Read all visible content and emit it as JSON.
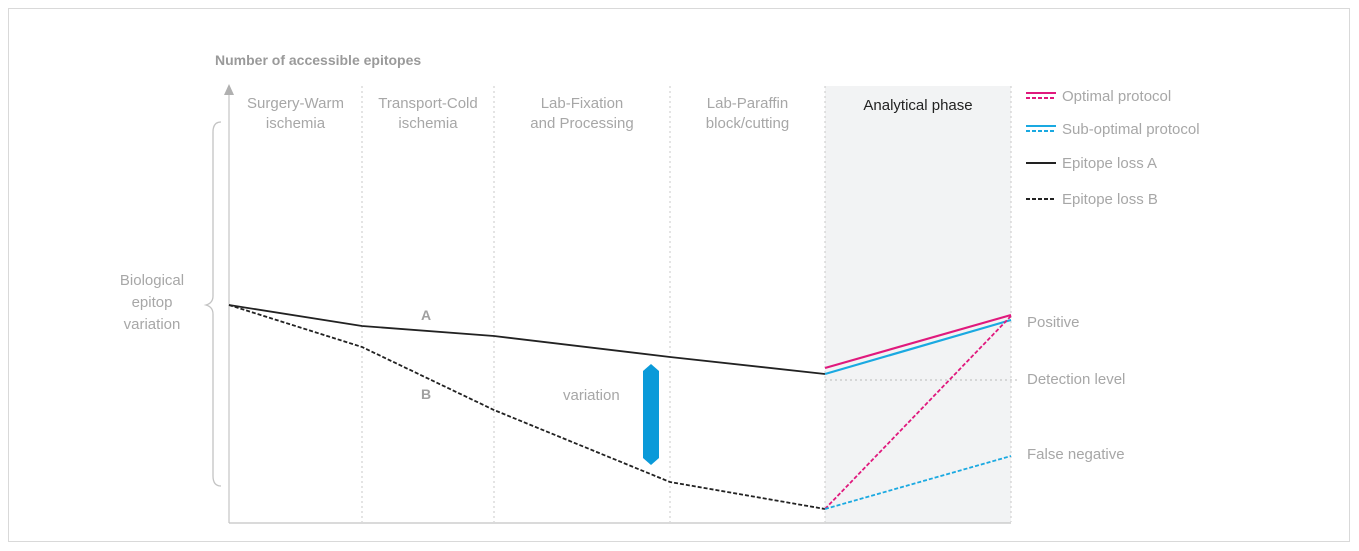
{
  "title": "Number of accessible epitopes",
  "phases": [
    {
      "label": "Surgery-Warm\nischemia"
    },
    {
      "label": "Transport-Cold\nischemia"
    },
    {
      "label": "Lab-Fixation\nand Processing"
    },
    {
      "label": "Lab-Paraffin\nblock/cutting"
    },
    {
      "label": "Analytical phase"
    }
  ],
  "biological_label": "Biological\nepitop\nvariation",
  "line_labels": {
    "a": "A",
    "b": "B"
  },
  "variation_label": "variation",
  "outcomes": {
    "positive": "Positive",
    "detection": "Detection level",
    "false_negative": "False negative"
  },
  "legend": [
    {
      "label": "Optimal protocol",
      "color": "#e0197d",
      "style": "double"
    },
    {
      "label": "Sub-optimal protocol",
      "color": "#1aa9e1",
      "style": "double"
    },
    {
      "label": "Epitope loss A",
      "color": "#222222",
      "style": "solid"
    },
    {
      "label": "Epitope loss B",
      "color": "#222222",
      "style": "dashed"
    }
  ],
  "colors": {
    "optimal": "#e0197d",
    "suboptimal": "#1aa9e1",
    "loss": "#222222",
    "variation_marker": "#0a9ad9",
    "analytical_bg": "#f2f3f4",
    "muted_text": "#a7a7a7"
  }
}
